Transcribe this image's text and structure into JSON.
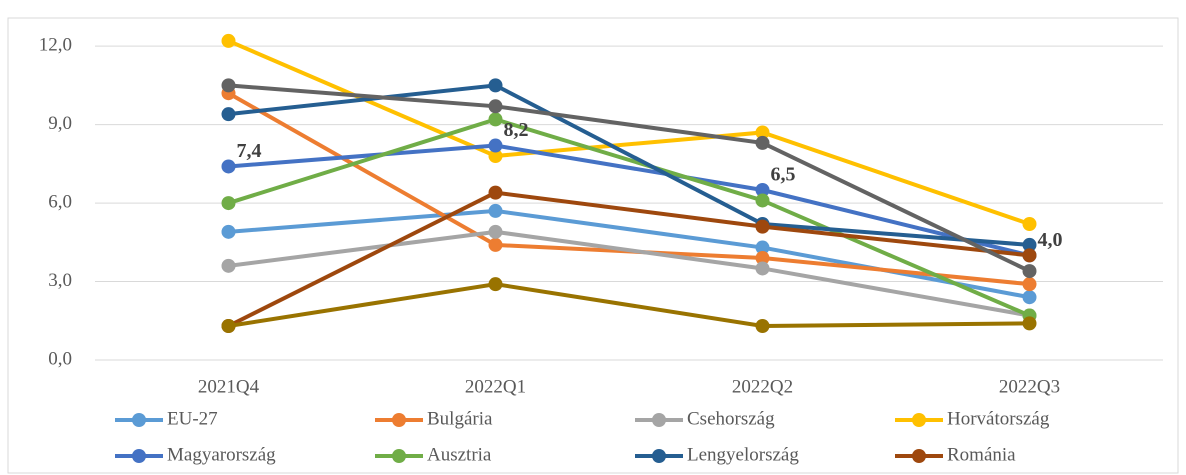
{
  "chart_data": {
    "type": "line",
    "categories": [
      "2021Q4",
      "2022Q1",
      "2022Q2",
      "2022Q3"
    ],
    "series": [
      {
        "name": "EU-27",
        "color": "#5b9bd5",
        "values": [
          4.9,
          5.7,
          4.3,
          2.4
        ]
      },
      {
        "name": "Bulgária",
        "color": "#ed7d31",
        "values": [
          10.2,
          4.4,
          3.9,
          2.9
        ]
      },
      {
        "name": "Csehország",
        "color": "#a5a5a5",
        "values": [
          3.6,
          4.9,
          3.5,
          1.7
        ]
      },
      {
        "name": "Horvátország",
        "color": "#ffc000",
        "values": [
          12.2,
          7.8,
          8.7,
          5.2
        ]
      },
      {
        "name": "Magyarország",
        "color": "#4472c4",
        "values": [
          7.4,
          8.2,
          6.5,
          4.0
        ],
        "value_labels": [
          "7,4",
          "8,2",
          "6,5",
          "4,0"
        ]
      },
      {
        "name": "Ausztria",
        "color": "#70ad47",
        "values": [
          6.0,
          9.2,
          6.1,
          1.7
        ]
      },
      {
        "name": "Lengyelország",
        "color": "#255e91",
        "values": [
          9.4,
          10.5,
          5.2,
          4.4
        ]
      },
      {
        "name": "Románia",
        "color": "#9e480e",
        "values": [
          1.3,
          6.4,
          5.1,
          4.0
        ]
      },
      {
        "color": "#636363",
        "values": [
          10.5,
          9.7,
          8.3,
          3.4
        ]
      },
      {
        "color": "#997300",
        "values": [
          1.3,
          2.9,
          1.3,
          1.4
        ]
      }
    ],
    "ylim": [
      0,
      13
    ],
    "yticks": [
      {
        "value": 0,
        "label": "0,0"
      },
      {
        "value": 3,
        "label": "3,0"
      },
      {
        "value": 6,
        "label": "6,0"
      },
      {
        "value": 9,
        "label": "9,0"
      },
      {
        "value": 12,
        "label": "12,0"
      }
    ],
    "grid": true,
    "legend": "bottom"
  }
}
